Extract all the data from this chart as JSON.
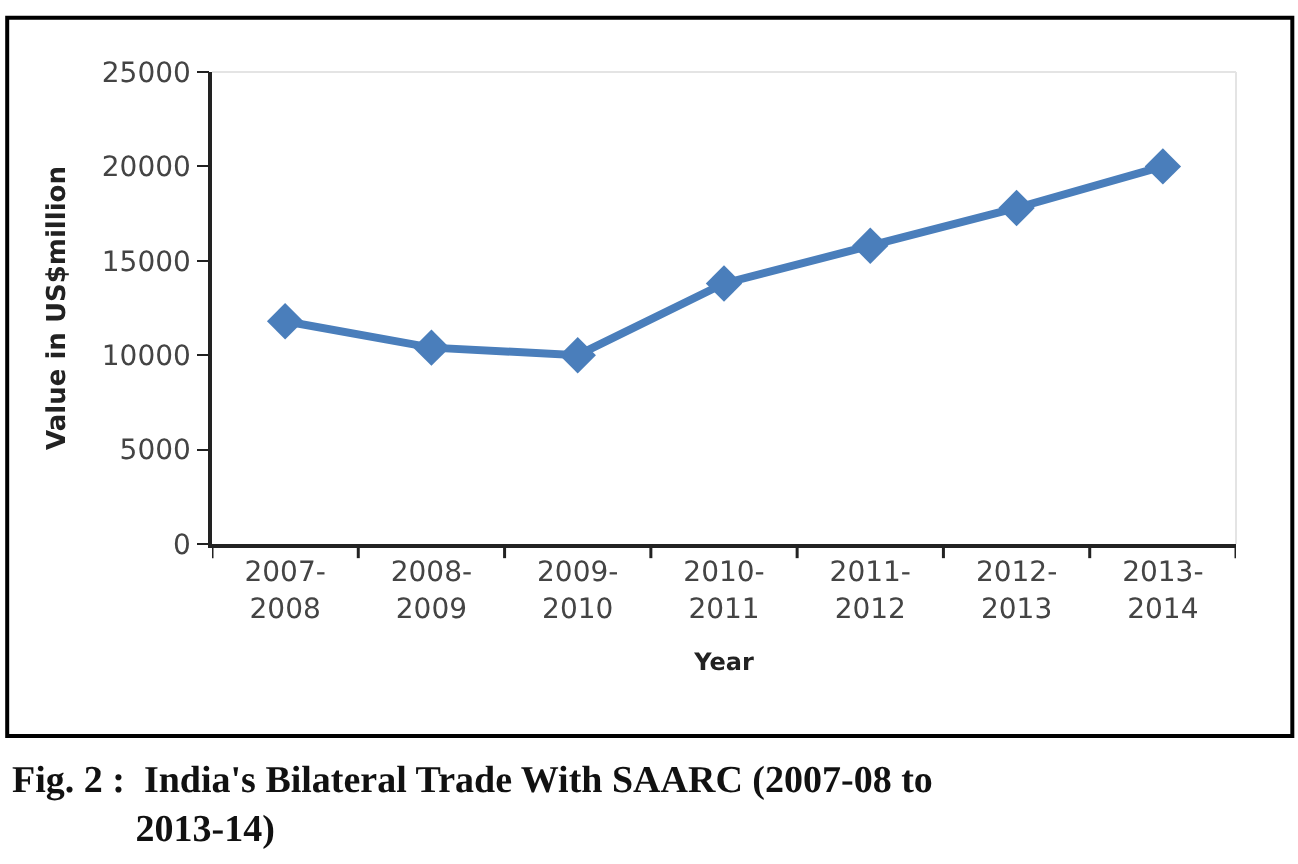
{
  "chart_data": {
    "type": "line",
    "xlabel": "Year",
    "ylabel": "Value in US$million",
    "categories": [
      "2007-2008",
      "2008-2009",
      "2009-2010",
      "2010-2011",
      "2011-2012",
      "2012-2013",
      "2013-2014"
    ],
    "series": [
      {
        "color": "#4a7ebb",
        "values": [
          11800,
          10400,
          10000,
          13800,
          15800,
          17800,
          20000
        ]
      }
    ],
    "ylim": [
      0,
      25000
    ],
    "yticks": [
      0,
      5000,
      10000,
      15000,
      20000,
      25000
    ],
    "legend": false,
    "marker": "diamond",
    "line_style": "solid",
    "annotations": [
      "Fig. 2 :  India's Bilateral Trade With SAARC (2007-08 to 2013-14)"
    ]
  }
}
